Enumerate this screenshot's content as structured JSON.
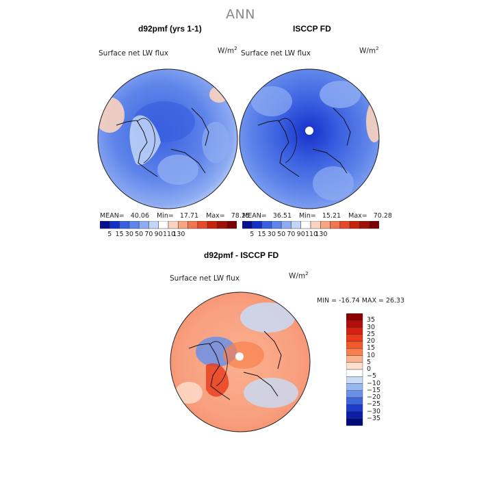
{
  "page": {
    "title": "ANN"
  },
  "panels": [
    {
      "heading": "d92pmf (yrs 1-1)",
      "variable": "Surface net LW flux",
      "units_base": "W/m",
      "units_exp": "2",
      "stats": {
        "mean_label": "MEAN=",
        "mean": "40.06",
        "min_label": "Min=",
        "min": "17.71",
        "max_label": "Max=",
        "max": "78.25"
      }
    },
    {
      "heading": "ISCCP FD",
      "variable": "Surface net LW flux",
      "units_base": "W/m",
      "units_exp": "2",
      "stats": {
        "mean_label": "MEAN=",
        "mean": "36.51",
        "min_label": "Min=",
        "min": "15.21",
        "max_label": "Max=",
        "max": "70.28"
      }
    }
  ],
  "abs_colorbar": {
    "ticks": [
      "5",
      "15",
      "30",
      "50",
      "70",
      "90",
      "110",
      "130"
    ],
    "colors": [
      "#08108c",
      "#1530c8",
      "#3a5fe0",
      "#5f85ea",
      "#8eacf2",
      "#c2d6f8",
      "#ffffff",
      "#fbd3be",
      "#f7a585",
      "#f07550",
      "#e34a25",
      "#c8220f",
      "#a01005",
      "#7a0000"
    ]
  },
  "diff": {
    "heading": "d92pmf - ISCCP FD",
    "variable": "Surface net LW flux",
    "units_base": "W/m",
    "units_exp": "2",
    "minmax_text": "MIN = -16.74 MAX =  26.33",
    "colorbar": {
      "labels": [
        "35",
        "30",
        "25",
        "20",
        "15",
        "10",
        "5",
        "0",
        "−5",
        "−10",
        "−15",
        "−20",
        "−25",
        "−30",
        "−35"
      ],
      "colors": [
        "#8a0000",
        "#b30c0c",
        "#d42010",
        "#e83a18",
        "#f35a2a",
        "#f8804f",
        "#fbb08e",
        "#fde0cd",
        "#ffffff",
        "#c8dcf8",
        "#98b8f0",
        "#6a90e8",
        "#3f66dd",
        "#1c3ccc",
        "#0a1ea8",
        "#000a7a"
      ]
    }
  },
  "colors": {
    "ocean_mid": "#5f85ea",
    "land_dark": "#3a5fe0",
    "ice_center": "#1530c8",
    "diff_warm": "#f8a080",
    "diff_cool": "#a9c2f2"
  }
}
